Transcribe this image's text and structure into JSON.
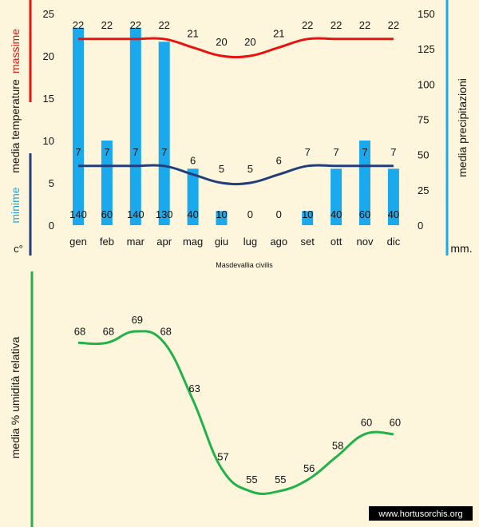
{
  "chart_title": "Masdevallia civilis",
  "watermark": "www.hortusorchis.org",
  "colors": {
    "background": "#fdf6dc",
    "max_line": "#e8120f",
    "min_line": "#1f3e7a",
    "bars": "#19a9ec",
    "humidity_line": "#21b24a",
    "axis_text": "#111111"
  },
  "chart_data": [
    {
      "type": "bar",
      "title": "Masdevallia civilis",
      "categories": [
        "gen",
        "feb",
        "mar",
        "apr",
        "mag",
        "giu",
        "lug",
        "ago",
        "set",
        "ott",
        "nov",
        "dic"
      ],
      "left_axis": {
        "label_max": "massime",
        "label_media": "media  temperature",
        "label_min": "minime",
        "unit": "c°",
        "ylim": [
          0,
          25
        ],
        "ticks": [
          "0",
          "5",
          "10",
          "15",
          "20",
          "25"
        ]
      },
      "right_axis": {
        "label": "media  precipitazioni",
        "unit": "mm.",
        "ylim": [
          0,
          150
        ],
        "ticks": [
          "0",
          "25",
          "50",
          "75",
          "100",
          "125",
          "150"
        ]
      },
      "series": [
        {
          "name": "media precipitazioni (mm)",
          "kind": "bar",
          "axis": "right",
          "values": [
            140,
            60,
            140,
            130,
            40,
            10,
            0,
            0,
            10,
            40,
            60,
            40
          ],
          "labels": [
            "140",
            "60",
            "140",
            "130",
            "40",
            "10",
            "0",
            "0",
            "10",
            "40",
            "60",
            "40"
          ]
        },
        {
          "name": "massime",
          "kind": "line",
          "axis": "left",
          "values": [
            22,
            22,
            22,
            22,
            21,
            20,
            20,
            21,
            22,
            22,
            22,
            22
          ],
          "labels": [
            "22",
            "22",
            "22",
            "22",
            "21",
            "20",
            "20",
            "21",
            "22",
            "22",
            "22",
            "22"
          ]
        },
        {
          "name": "minime",
          "kind": "line",
          "axis": "left",
          "values": [
            7,
            7,
            7,
            7,
            6,
            5,
            5,
            6,
            7,
            7,
            7,
            7
          ],
          "labels": [
            "7",
            "7",
            "7",
            "7",
            "6",
            "5",
            "5",
            "6",
            "7",
            "7",
            "7",
            "7"
          ]
        }
      ]
    },
    {
      "type": "line",
      "ylabel": "media %  umidità relativa",
      "series": [
        {
          "name": "umidità relativa (%)",
          "values": [
            68,
            68,
            69,
            68,
            63,
            57,
            55,
            55,
            56,
            58,
            60,
            60
          ],
          "labels": [
            "68",
            "68",
            "69",
            "68",
            "63",
            "57",
            "55",
            "55",
            "56",
            "58",
            "60",
            "60"
          ]
        }
      ]
    }
  ]
}
